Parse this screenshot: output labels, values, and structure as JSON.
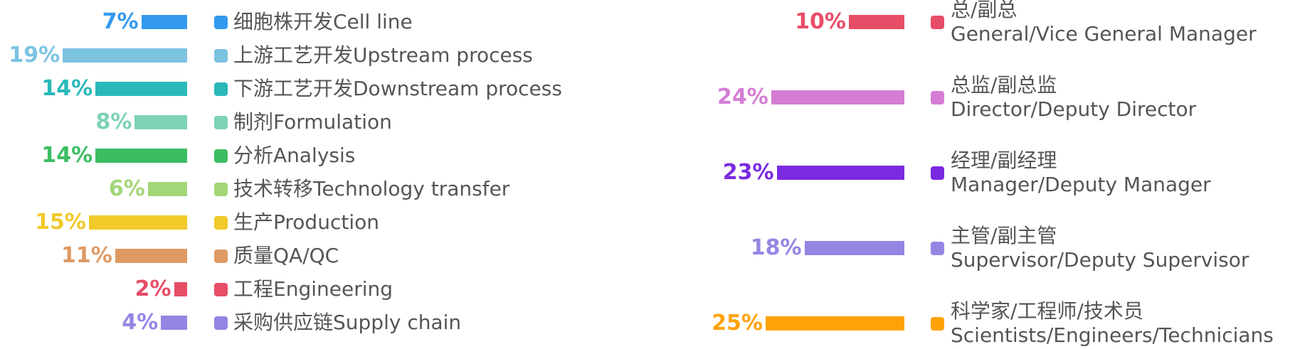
{
  "chart_data": [
    {
      "type": "bar",
      "orientation": "horizontal",
      "categories": [
        "细胞株开发Cell line",
        "上游工艺开发Upstream process",
        "下游工艺开发Downstream process",
        "制剂Formulation",
        "分析Analysis",
        "技术转移Technology transfer",
        "生产Production",
        "质量QA/QC",
        "工程Engineering",
        "采购供应链Supply chain"
      ],
      "values": [
        7,
        19,
        14,
        8,
        14,
        6,
        15,
        11,
        2,
        4
      ],
      "value_labels": [
        "7%",
        "19%",
        "14%",
        "8%",
        "14%",
        "6%",
        "15%",
        "11%",
        "2%",
        "4%"
      ],
      "colors": [
        "#3399ee",
        "#7cc3e2",
        "#2ab8b9",
        "#7dd3b4",
        "#3cbd62",
        "#a3d677",
        "#f0c92a",
        "#de9a64",
        "#e64d67",
        "#9585e3"
      ],
      "unit": "%",
      "legend": "right"
    },
    {
      "type": "bar",
      "orientation": "horizontal",
      "categories": [
        [
          "总/副总",
          "General/Vice General Manager"
        ],
        [
          "总监/副总监",
          "Director/Deputy Director"
        ],
        [
          "经理/副经理",
          "Manager/Deputy Manager"
        ],
        [
          "主管/副主管",
          "Supervisor/Deputy Supervisor"
        ],
        [
          "科学家/工程师/技术员",
          "Scientists/Engineers/Technicians"
        ]
      ],
      "values": [
        10,
        24,
        23,
        18,
        25
      ],
      "value_labels": [
        "10%",
        "24%",
        "23%",
        "18%",
        "25%"
      ],
      "colors": [
        "#e64d67",
        "#d57dd4",
        "#7a2ae0",
        "#9585e3",
        "#ffa20a"
      ],
      "unit": "%",
      "legend": "right"
    }
  ]
}
